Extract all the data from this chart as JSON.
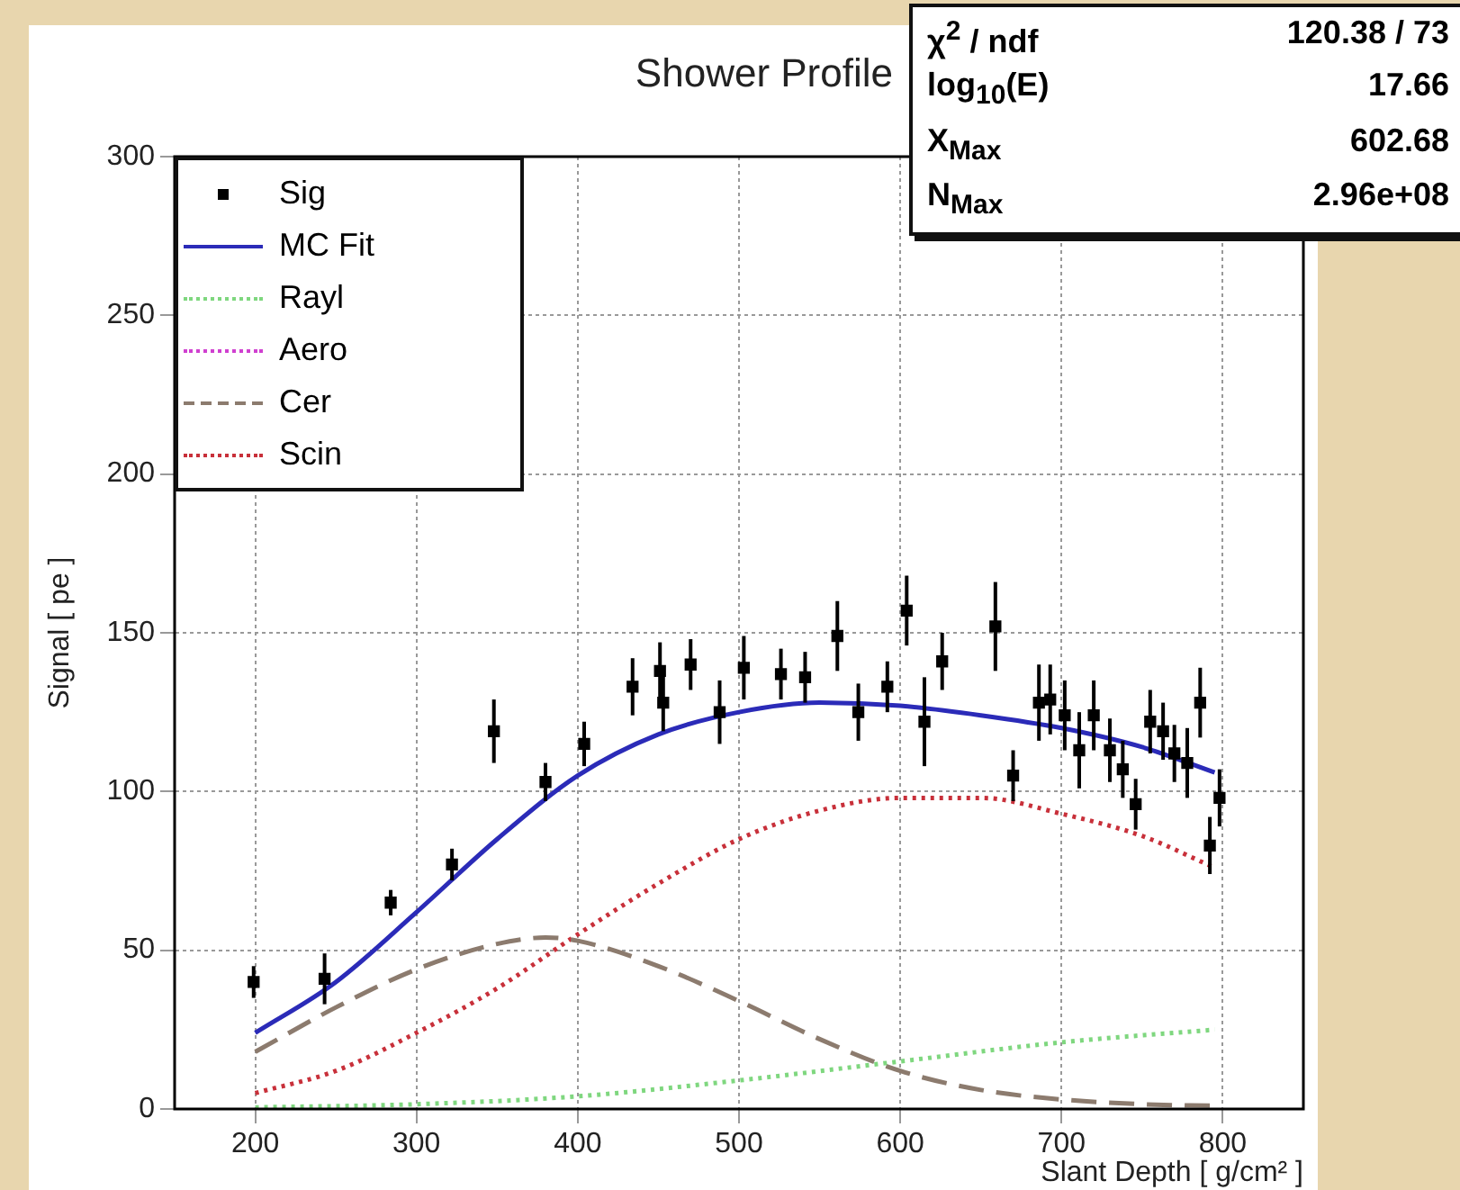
{
  "chart_data": {
    "type": "scatter",
    "title": "Shower Profile",
    "xlabel": "Slant Depth [ g/cm² ]",
    "ylabel": "Signal [ pe ]",
    "xlim": [
      150,
      850
    ],
    "xticks": [
      200,
      300,
      400,
      500,
      600,
      700,
      800
    ],
    "ylim": [
      0,
      300
    ],
    "yticks": [
      0,
      50,
      100,
      150,
      200,
      250,
      300
    ],
    "grid": true,
    "legend": "top left",
    "annotations": [
      "χ$^{2}$ / ndf",
      "120.38 / 73",
      "log$_{10}$(E)",
      "17.66",
      "X$_{Max}$",
      "602.68",
      "N$_{Max}$",
      "2.96e+08"
    ],
    "series": [
      {
        "name": "Sig",
        "color": "#000000",
        "marker": "square",
        "x": [
          199,
          243,
          284,
          322,
          348,
          380,
          404,
          434,
          451,
          453,
          470,
          488,
          503,
          526,
          541,
          561,
          574,
          592,
          604,
          615,
          626,
          659,
          670,
          686,
          693,
          702,
          711,
          720,
          730,
          738,
          746,
          755,
          763,
          770,
          778,
          786,
          792,
          798
        ],
        "values": [
          40,
          41,
          65,
          77,
          119,
          103,
          115,
          133,
          138,
          128,
          140,
          125,
          139,
          137,
          136,
          149,
          125,
          133,
          157,
          122,
          141,
          152,
          105,
          128,
          129,
          124,
          113,
          124,
          113,
          107,
          96,
          122,
          119,
          112,
          109,
          128,
          83,
          98
        ],
        "errors": [
          5,
          8,
          4,
          5,
          10,
          6,
          7,
          9,
          9,
          9,
          8,
          10,
          10,
          8,
          8,
          11,
          9,
          8,
          11,
          14,
          9,
          14,
          8,
          12,
          11,
          11,
          12,
          11,
          10,
          9,
          8,
          10,
          9,
          9,
          11,
          11,
          9,
          9
        ]
      },
      {
        "name": "MC Fit",
        "type": "line",
        "color": "#2b2bb8",
        "line_style": "solid",
        "x": [
          200,
          250,
          300,
          350,
          400,
          450,
          500,
          550,
          600,
          650,
          700,
          750,
          795
        ],
        "values": [
          24,
          40,
          62,
          85,
          105,
          118,
          125,
          128,
          127,
          124,
          120,
          114,
          106
        ]
      },
      {
        "name": "Rayl",
        "type": "line",
        "color": "#7fd77f",
        "line_style": "dotted",
        "x": [
          200,
          300,
          400,
          500,
          600,
          700,
          795
        ],
        "values": [
          0.5,
          1.5,
          4,
          9,
          15,
          21,
          25
        ]
      },
      {
        "name": "Aero",
        "type": "line",
        "color": "#d040d0",
        "line_style": "dotted"
      },
      {
        "name": "Cer",
        "type": "line",
        "color": "#8c7b6e",
        "line_style": "dashed",
        "x": [
          200,
          250,
          300,
          350,
          380,
          400,
          450,
          500,
          550,
          600,
          650,
          700,
          750,
          795
        ],
        "values": [
          18,
          32,
          44,
          52,
          54,
          53,
          45,
          34,
          22,
          12,
          6,
          3,
          1.5,
          1
        ]
      },
      {
        "name": "Scin",
        "type": "line",
        "color": "#c8303a",
        "line_style": "dotted",
        "x": [
          200,
          250,
          300,
          350,
          400,
          450,
          500,
          550,
          600,
          650,
          700,
          750,
          795
        ],
        "values": [
          5,
          12,
          24,
          38,
          55,
          71,
          85,
          94,
          98,
          98,
          93,
          86,
          76
        ]
      }
    ]
  }
}
